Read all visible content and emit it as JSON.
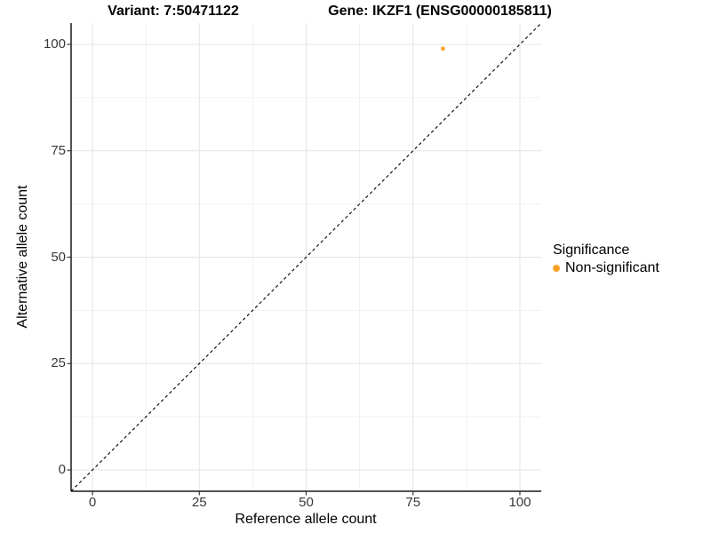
{
  "figure": {
    "title_variant": "Variant: 7:50471122",
    "title_gene": "Gene: IKZF1 (ENSG00000185811)"
  },
  "legend": {
    "title": "Significance",
    "items": [
      {
        "label": "Non-significant",
        "color": "#F9A32A"
      }
    ]
  },
  "chart_data": {
    "type": "scatter",
    "title_left": "Variant: 7:50471122",
    "title_right": "Gene: IKZF1 (ENSG00000185811)",
    "xlabel": "Reference allele count",
    "ylabel": "Alternative allele count",
    "xlim": [
      -5,
      105
    ],
    "ylim": [
      -5,
      105
    ],
    "x_ticks": [
      0,
      25,
      50,
      75,
      100
    ],
    "y_ticks": [
      0,
      25,
      50,
      75,
      100
    ],
    "grid": "major and minor gridlines, minor at midpoints (12.5 steps)",
    "legend_position": "right",
    "series": [
      {
        "name": "Non-significant",
        "color": "#F9A32A",
        "points": [
          {
            "x": 82,
            "y": 99
          }
        ]
      }
    ],
    "reference_line": {
      "type": "identity y=x",
      "style": "dashed",
      "color": "#000000"
    }
  }
}
